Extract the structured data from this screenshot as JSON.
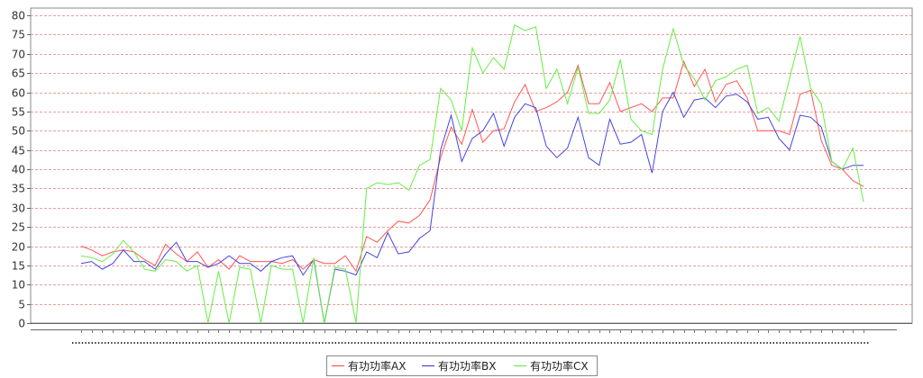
{
  "chart_data": {
    "type": "line",
    "title": "",
    "xlabel": "",
    "ylabel": "",
    "ylim": [
      0,
      80
    ],
    "yticks": [
      0,
      5,
      10,
      15,
      20,
      25,
      30,
      35,
      40,
      45,
      50,
      55,
      60,
      65,
      70,
      75,
      80
    ],
    "grid": true,
    "legend_position": "bottom",
    "series": [
      {
        "name": "有功功率AX",
        "color": "#ff5555",
        "values": [
          20,
          19,
          17.5,
          18.5,
          19,
          18.5,
          16.5,
          15,
          20.5,
          18,
          16,
          18.5,
          14.5,
          16.5,
          14,
          17.5,
          16,
          16,
          16,
          15.5,
          16.5,
          14,
          16.5,
          15.5,
          15.5,
          17.5,
          13.5,
          22.5,
          21,
          24,
          26.5,
          26,
          28,
          32,
          43,
          51,
          46.5,
          55.5,
          47,
          50,
          50.5,
          57.5,
          62,
          55,
          56,
          57.5,
          60,
          67,
          57,
          57,
          62.5,
          55,
          56,
          57,
          55,
          58.5,
          58.5,
          68,
          61.5,
          66,
          57.5,
          62,
          63,
          58.5,
          50,
          50,
          50,
          49,
          59.5,
          60.5,
          47.5,
          41,
          40,
          37,
          35.5
        ]
      },
      {
        "name": "有功功率BX",
        "color": "#4444dd",
        "values": [
          15.5,
          16,
          14,
          15.5,
          19,
          16,
          16,
          14,
          18,
          21,
          16,
          16,
          14.5,
          15.5,
          17.5,
          15.5,
          15.5,
          13.5,
          16,
          17,
          17.5,
          12.5,
          16.5,
          0,
          14,
          13.5,
          12.5,
          18.5,
          17,
          23.5,
          18,
          18.5,
          22,
          24,
          45,
          54,
          42,
          48,
          50,
          54.5,
          46,
          53.5,
          57,
          56,
          46,
          43,
          45.5,
          53.5,
          43,
          41,
          53,
          46.5,
          47,
          49,
          39,
          55,
          60,
          53.5,
          58,
          58.5,
          56,
          59,
          59.5,
          57.5,
          53,
          53.5,
          48,
          45,
          54,
          53.5,
          51,
          42,
          40,
          41,
          41
        ]
      },
      {
        "name": "有功功率CX",
        "color": "#66ee44",
        "values": [
          17.5,
          17,
          16,
          18,
          21.5,
          18.5,
          14,
          13.5,
          16.5,
          16,
          13.5,
          15,
          0,
          13.5,
          0,
          14.5,
          14,
          0,
          15,
          14,
          14,
          0,
          17,
          0,
          14.5,
          14,
          0,
          35,
          36.5,
          36,
          36.5,
          34.5,
          41,
          42.5,
          61,
          58,
          50,
          71.5,
          65,
          69,
          66,
          77.5,
          76,
          77,
          61,
          66,
          57,
          66.5,
          54.5,
          54.5,
          58,
          68.5,
          53,
          50,
          49,
          66,
          76.5,
          67,
          63.5,
          58,
          63,
          64,
          66,
          67,
          54.5,
          56,
          52.5,
          63.5,
          74.5,
          61,
          57,
          42,
          40,
          45.5,
          31.5
        ]
      }
    ]
  }
}
